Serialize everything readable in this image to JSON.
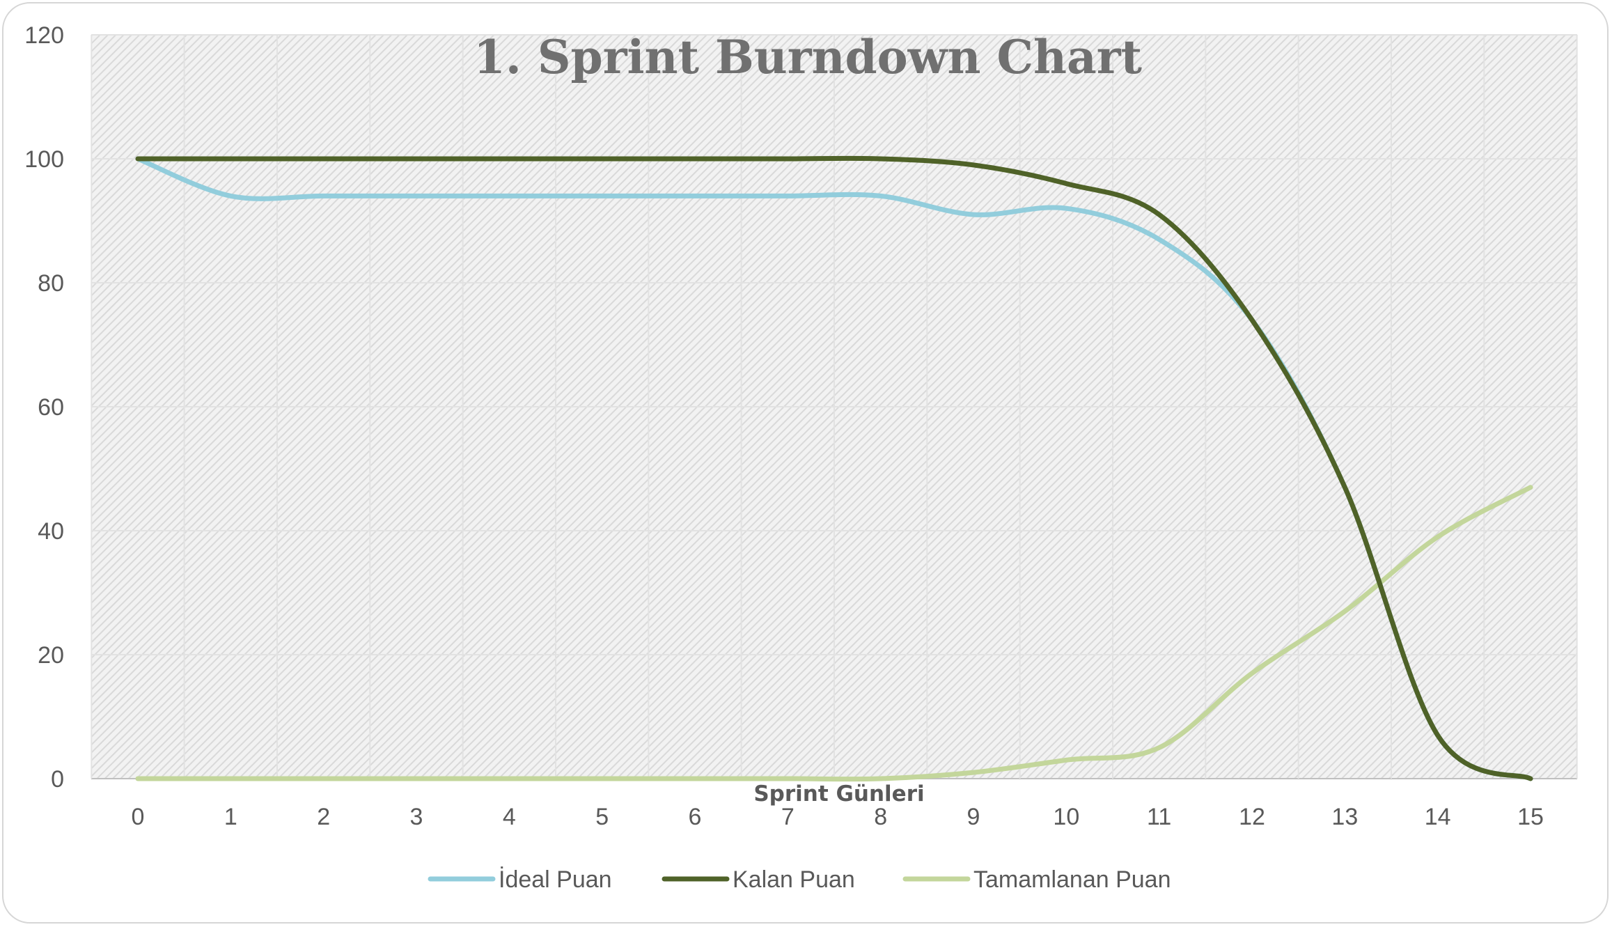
{
  "chart_data": {
    "type": "line",
    "title": "1. Sprint Burndown Chart",
    "xlabel": "Sprint Günleri",
    "ylabel": "",
    "x": [
      0,
      1,
      2,
      3,
      4,
      5,
      6,
      7,
      8,
      9,
      10,
      11,
      12,
      13,
      14,
      15
    ],
    "xlim": [
      0,
      15
    ],
    "ylim": [
      0,
      120
    ],
    "yticks": [
      0,
      20,
      40,
      60,
      80,
      100,
      120
    ],
    "grid": true,
    "legend": "bottom",
    "series": [
      {
        "name": "İdeal Puan",
        "color": "#92cddc",
        "values": [
          100,
          94,
          94,
          94,
          94,
          94,
          94,
          94,
          94,
          91,
          92,
          87,
          74,
          47,
          7,
          0
        ]
      },
      {
        "name": "Kalan Puan",
        "color": "#4f6228",
        "values": [
          100,
          100,
          100,
          100,
          100,
          100,
          100,
          100,
          100,
          99,
          96,
          91,
          74,
          47,
          7,
          0
        ]
      },
      {
        "name": "Tamamlanan Puan",
        "color": "#c3d69b",
        "values": [
          0,
          0,
          0,
          0,
          0,
          0,
          0,
          0,
          0,
          1,
          3,
          5,
          17,
          27,
          39,
          47
        ]
      }
    ]
  }
}
